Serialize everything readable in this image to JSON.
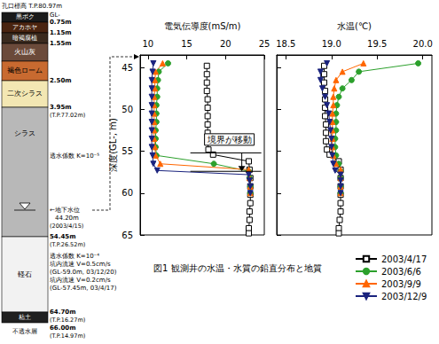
{
  "chart_data": [
    {
      "type": "line",
      "x_label": "電気伝導度(mS/m)",
      "y_label": "深度(GL-, m)",
      "xlim": [
        9,
        25
      ],
      "xticks": [
        10,
        15,
        20,
        25
      ],
      "ylim": [
        65,
        43.5
      ],
      "yticks": [
        45,
        50,
        55,
        60,
        65
      ],
      "grid": false,
      "annotations": [
        {
          "text": "境界が移動",
          "x": 20.5,
          "y": 53.6,
          "from": 55.2,
          "to": 57.4
        }
      ],
      "series": [
        {
          "name": "2003/4/17",
          "color": "#000000",
          "marker": "open_square",
          "line_style": "solid",
          "y": [
            44.8,
            45.8,
            46.8,
            47.8,
            48.8,
            49.8,
            50.8,
            51.8,
            52.8,
            53.8,
            54.8,
            55.4,
            56.2,
            57.2,
            58.2,
            59.2,
            60.2,
            61.2,
            62.2,
            63.2,
            64.2,
            64.8
          ],
          "x": [
            17.6,
            17.6,
            17.6,
            17.6,
            17.7,
            17.7,
            17.7,
            17.7,
            17.7,
            17.7,
            17.8,
            18.4,
            23.0,
            23.1,
            23.2,
            23.2,
            23.2,
            23.2,
            23.1,
            23.1,
            23.0,
            23.0
          ]
        },
        {
          "name": "2003/6/6",
          "color": "#2ca02c",
          "marker": "circle",
          "line_style": "solid",
          "y": [
            44.5,
            45.5,
            46.5,
            47.5,
            48.5,
            49.5,
            50.5,
            51.5,
            52.5,
            53.5,
            54.5,
            55.5,
            56.5,
            57.4,
            58.2,
            59.2,
            60.0
          ],
          "x": [
            12.6,
            11.4,
            11.3,
            11.2,
            11.2,
            11.1,
            11.1,
            11.1,
            11.0,
            11.0,
            11.0,
            11.1,
            18.5,
            23.0,
            23.1,
            23.2,
            23.2
          ]
        },
        {
          "name": "2003/9/9",
          "color": "#ff6600",
          "marker": "triangle",
          "line_style": "solid",
          "y": [
            44.5,
            45.5,
            46.5,
            47.5,
            48.5,
            49.5,
            50.5,
            51.5,
            52.5,
            53.5,
            54.5,
            55.5,
            56.5,
            57.2,
            58.2,
            59.2,
            60.0
          ],
          "x": [
            11.9,
            11.0,
            10.9,
            10.9,
            10.8,
            10.8,
            10.8,
            10.8,
            10.8,
            10.8,
            10.9,
            11.0,
            11.6,
            23.0,
            23.1,
            23.2,
            23.2
          ]
        },
        {
          "name": "2003/12/9",
          "color": "#1a237e",
          "marker": "triangle_down",
          "line_style": "solid",
          "y": [
            44.5,
            45.5,
            46.5,
            47.5,
            48.5,
            49.5,
            50.5,
            51.5,
            52.5,
            53.5,
            54.5,
            55.5,
            56.5,
            57.3,
            57.8,
            58.5,
            59.2,
            60.0
          ],
          "x": [
            10.7,
            10.6,
            10.5,
            10.5,
            10.5,
            10.5,
            10.5,
            10.5,
            10.5,
            10.5,
            10.5,
            10.6,
            10.7,
            11.2,
            23.0,
            23.1,
            23.2,
            23.2
          ]
        }
      ]
    },
    {
      "type": "line",
      "x_label": "水温(℃)",
      "xlim": [
        18.4,
        20.1
      ],
      "xticks": [
        18.5,
        {
          "value": 19,
          "label": "19.0"
        },
        19.5,
        {
          "value": 20,
          "label": "20.0"
        }
      ],
      "ylim": [
        65,
        43.5
      ],
      "yticks": [
        45,
        50,
        55,
        60,
        65
      ],
      "grid": false,
      "tick_labels": "x",
      "legend": "lower right",
      "series": [
        {
          "name": "2003/4/17",
          "color": "#000000",
          "marker": "open_square",
          "line_style": "solid",
          "y": [
            44.8,
            45.8,
            46.8,
            47.8,
            48.8,
            49.8,
            50.8,
            51.8,
            52.8,
            53.8,
            54.8,
            55.4,
            56.2,
            57.2,
            58.2,
            59.2,
            60.2,
            61.2,
            62.2,
            63.2,
            64.2,
            64.8
          ],
          "x": [
            18.92,
            18.92,
            18.92,
            18.93,
            18.93,
            18.93,
            18.93,
            18.94,
            18.94,
            18.94,
            18.95,
            18.98,
            19.08,
            19.1,
            19.1,
            19.1,
            19.1,
            19.1,
            19.1,
            19.09,
            19.08,
            19.08
          ]
        },
        {
          "name": "2003/6/6",
          "color": "#2ca02c",
          "marker": "circle",
          "line_style": "solid",
          "y": [
            44.5,
            45.5,
            46.5,
            47.5,
            48.5,
            49.5,
            50.5,
            51.5,
            52.5,
            53.5,
            54.5,
            55.5,
            56.5,
            57.4,
            58.2,
            59.2,
            60.0
          ],
          "x": [
            19.95,
            19.3,
            19.22,
            19.12,
            19.08,
            19.06,
            19.05,
            19.05,
            19.05,
            19.04,
            19.04,
            19.05,
            19.08,
            19.1,
            19.1,
            19.1,
            19.1
          ]
        },
        {
          "name": "2003/9/9",
          "color": "#ff6600",
          "marker": "triangle",
          "line_style": "solid",
          "y": [
            44.5,
            45.5,
            46.5,
            47.5,
            48.5,
            49.5,
            50.5,
            51.5,
            52.5,
            53.5,
            54.5,
            55.5,
            56.5,
            57.2,
            58.2,
            59.2,
            60.0
          ],
          "x": [
            19.35,
            19.12,
            19.05,
            19.03,
            19.02,
            19.02,
            19.01,
            19.01,
            19.01,
            19.01,
            19.01,
            19.02,
            19.05,
            19.1,
            19.1,
            19.1,
            19.1
          ]
        },
        {
          "name": "2003/12/9",
          "color": "#1a237e",
          "marker": "triangle_down",
          "line_style": "solid",
          "y": [
            44.5,
            45.5,
            46.5,
            47.5,
            48.5,
            49.5,
            50.5,
            51.5,
            52.5,
            53.5,
            54.5,
            55.5,
            56.5,
            57.3,
            57.8,
            58.5,
            59.2,
            60.0
          ],
          "x": [
            18.95,
            18.88,
            18.88,
            18.9,
            18.93,
            18.95,
            18.97,
            18.98,
            18.99,
            19.0,
            19.0,
            19.01,
            19.02,
            19.04,
            19.1,
            19.1,
            19.1,
            19.1
          ]
        }
      ]
    }
  ],
  "caption": "図1 観測井の水温・水質の鉛直分布と地質",
  "geology": {
    "title": "孔口標高 T.P.80.97m",
    "top_label": "GL-",
    "layers": [
      {
        "name": "黒ボク",
        "color": "#1a1a1a",
        "bottom": "0.75m"
      },
      {
        "name": "アカホヤ",
        "color": "#4a2410",
        "bottom": "1.15m"
      },
      {
        "name": "暗褐腐植",
        "color": "#3a2a1e",
        "bottom": "1.55m"
      },
      {
        "name": "火山灰",
        "color": "#6b4a3a"
      },
      {
        "name": "褐色ローム",
        "color": "#c86a30",
        "bottom": "2.50m"
      },
      {
        "name": "二次シラス",
        "color": "#f3e7b3",
        "bottom": "3.95m",
        "bottom_note": "(T.P.77.02m)"
      },
      {
        "name": "シラス",
        "color": "#b8b8b8",
        "bottom": "54.45m",
        "bottom_note": "(T.P.26.52m)",
        "notes": [
          "透水係数 K=10⁻⁵"
        ]
      },
      {
        "name": "軽石",
        "color": "#f2f2f2",
        "bottom": "64.70m",
        "bottom_note": "(T.P.16.27m)",
        "notes": [
          "透水係数 K=10⁻⁴",
          "坑内流速 V=0.5cm/s",
          "(GL-59.0m, 03/12/20)",
          "坑内流速 V=0.2cm/s",
          "(GL-57.45m, 03/4/17)"
        ]
      },
      {
        "name": "粘土",
        "color": "#202020",
        "bottom": "66.00m",
        "bottom_note": "(T.P.14.97m)"
      }
    ],
    "base": "不透水層",
    "water_level": {
      "label": "←地下水位",
      "depth": "44.20m",
      "date": "(2003/4/15)"
    }
  }
}
